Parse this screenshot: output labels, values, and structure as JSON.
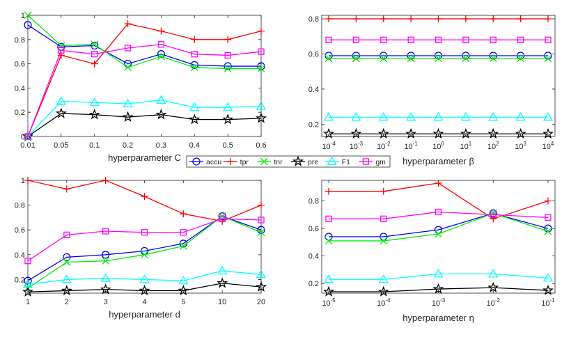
{
  "legend": {
    "entries": [
      {
        "name": "accu",
        "color": "#0000ff",
        "marker": "circle"
      },
      {
        "name": "tpr",
        "color": "#ff0000",
        "marker": "plus"
      },
      {
        "name": "tnr",
        "color": "#00ee00",
        "marker": "x"
      },
      {
        "name": "pre",
        "color": "#000000",
        "marker": "star"
      },
      {
        "name": "F1",
        "color": "#00ffff",
        "marker": "triangle"
      },
      {
        "name": "gm",
        "color": "#ff00ff",
        "marker": "square"
      }
    ]
  },
  "chart_data": [
    {
      "type": "line",
      "title": "",
      "xlabel": "hyperparameter C",
      "ylabel": "",
      "categories": [
        "0.01",
        "0.05",
        "0.1",
        "0.2",
        "0.3",
        "0.4",
        "0.5",
        "0.6"
      ],
      "ylim": [
        0,
        1
      ],
      "yticks": [
        "0",
        "0.2",
        "0.4",
        "0.6",
        "0.8",
        "1"
      ],
      "series": [
        {
          "name": "accu",
          "values": [
            0.92,
            0.74,
            0.75,
            0.6,
            0.68,
            0.59,
            0.58,
            0.58
          ]
        },
        {
          "name": "tpr",
          "values": [
            0.0,
            0.67,
            0.6,
            0.93,
            0.87,
            0.8,
            0.8,
            0.87
          ]
        },
        {
          "name": "tnr",
          "values": [
            1.0,
            0.75,
            0.76,
            0.57,
            0.66,
            0.57,
            0.56,
            0.56
          ]
        },
        {
          "name": "pre",
          "values": [
            0.0,
            0.19,
            0.18,
            0.16,
            0.18,
            0.14,
            0.14,
            0.15
          ]
        },
        {
          "name": "F1",
          "values": [
            0.0,
            0.29,
            0.28,
            0.27,
            0.3,
            0.24,
            0.24,
            0.25
          ]
        },
        {
          "name": "gm",
          "values": [
            0.0,
            0.71,
            0.68,
            0.73,
            0.76,
            0.68,
            0.67,
            0.7
          ]
        }
      ]
    },
    {
      "type": "line",
      "title": "",
      "xlabel": "hyperparameter β",
      "ylabel": "",
      "categories": [
        "-4",
        "-3",
        "-2",
        "-1",
        "0",
        "1",
        "2",
        "3",
        "4"
      ],
      "tick_base": "10",
      "ylim": [
        0.13,
        0.82
      ],
      "yticks": [
        "0.2",
        "0.4",
        "0.6",
        "0.8"
      ],
      "series": [
        {
          "name": "accu",
          "values": [
            0.59,
            0.59,
            0.59,
            0.59,
            0.59,
            0.59,
            0.59,
            0.59,
            0.59
          ]
        },
        {
          "name": "tpr",
          "values": [
            0.8,
            0.8,
            0.8,
            0.8,
            0.8,
            0.8,
            0.8,
            0.8,
            0.8
          ]
        },
        {
          "name": "tnr",
          "values": [
            0.575,
            0.575,
            0.575,
            0.575,
            0.575,
            0.575,
            0.575,
            0.575,
            0.575
          ]
        },
        {
          "name": "pre",
          "values": [
            0.145,
            0.145,
            0.145,
            0.145,
            0.145,
            0.145,
            0.145,
            0.145,
            0.145
          ]
        },
        {
          "name": "F1",
          "values": [
            0.24,
            0.24,
            0.24,
            0.24,
            0.24,
            0.24,
            0.24,
            0.24,
            0.24
          ]
        },
        {
          "name": "gm",
          "values": [
            0.68,
            0.68,
            0.68,
            0.68,
            0.68,
            0.68,
            0.68,
            0.68,
            0.68
          ]
        }
      ]
    },
    {
      "type": "line",
      "title": "",
      "xlabel": "hyperparameter d",
      "ylabel": "",
      "categories": [
        "1",
        "2",
        "3",
        "4",
        "5",
        "10",
        "20"
      ],
      "ylim": [
        0.09,
        1.0
      ],
      "yticks": [
        "0.2",
        "0.4",
        "0.6",
        "0.8",
        "1"
      ],
      "series": [
        {
          "name": "accu",
          "values": [
            0.19,
            0.38,
            0.4,
            0.43,
            0.49,
            0.71,
            0.6
          ]
        },
        {
          "name": "tpr",
          "values": [
            1.0,
            0.93,
            1.0,
            0.87,
            0.73,
            0.67,
            0.8
          ]
        },
        {
          "name": "tnr",
          "values": [
            0.13,
            0.34,
            0.35,
            0.4,
            0.47,
            0.71,
            0.58
          ]
        },
        {
          "name": "pre",
          "values": [
            0.1,
            0.11,
            0.12,
            0.11,
            0.11,
            0.17,
            0.14
          ]
        },
        {
          "name": "F1",
          "values": [
            0.16,
            0.2,
            0.21,
            0.2,
            0.19,
            0.27,
            0.24
          ]
        },
        {
          "name": "gm",
          "values": [
            0.35,
            0.56,
            0.59,
            0.58,
            0.58,
            0.69,
            0.68
          ]
        }
      ]
    },
    {
      "type": "line",
      "title": "",
      "xlabel": "hyperparameter η",
      "ylabel": "",
      "categories": [
        "-5",
        "-4",
        "-3",
        "-2",
        "-1"
      ],
      "tick_base": "10",
      "ylim": [
        0.13,
        0.95
      ],
      "yticks": [
        "0.2",
        "0.4",
        "0.6",
        "0.8"
      ],
      "series": [
        {
          "name": "accu",
          "values": [
            0.54,
            0.54,
            0.59,
            0.71,
            0.6
          ]
        },
        {
          "name": "tpr",
          "values": [
            0.87,
            0.87,
            0.93,
            0.67,
            0.8
          ]
        },
        {
          "name": "tnr",
          "values": [
            0.51,
            0.51,
            0.56,
            0.71,
            0.58
          ]
        },
        {
          "name": "pre",
          "values": [
            0.14,
            0.14,
            0.16,
            0.17,
            0.15
          ]
        },
        {
          "name": "F1",
          "values": [
            0.23,
            0.23,
            0.27,
            0.27,
            0.24
          ]
        },
        {
          "name": "gm",
          "values": [
            0.67,
            0.67,
            0.72,
            0.7,
            0.68
          ]
        }
      ]
    }
  ]
}
